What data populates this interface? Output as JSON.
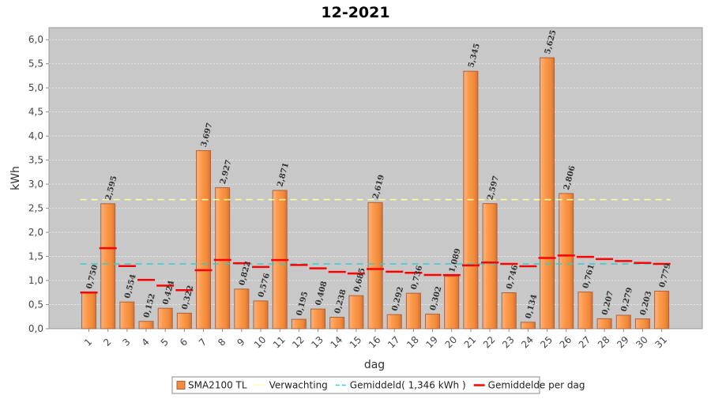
{
  "chart_data": {
    "type": "bar",
    "title": "12-2021",
    "xlabel": "dag",
    "ylabel": "kWh",
    "ylim": [
      0,
      6.25
    ],
    "yticks": [
      "0,0",
      "0,5",
      "1,0",
      "1,5",
      "2,0",
      "2,5",
      "3,0",
      "3,5",
      "4,0",
      "4,5",
      "5,0",
      "5,5",
      "6,0"
    ],
    "ytick_values": [
      0,
      0.5,
      1,
      1.5,
      2,
      2.5,
      3,
      3.5,
      4,
      4.5,
      5,
      5.5,
      6
    ],
    "categories": [
      "1",
      "2",
      "3",
      "4",
      "5",
      "6",
      "7",
      "8",
      "9",
      "10",
      "11",
      "12",
      "13",
      "14",
      "15",
      "16",
      "17",
      "18",
      "19",
      "20",
      "21",
      "22",
      "23",
      "24",
      "25",
      "26",
      "27",
      "28",
      "29",
      "30",
      "31"
    ],
    "series": [
      {
        "name": "SMA2100 TL",
        "values": [
          0.75,
          2.595,
          0.554,
          0.152,
          0.424,
          0.322,
          3.697,
          2.927,
          0.822,
          0.576,
          2.871,
          0.195,
          0.408,
          0.238,
          0.685,
          2.619,
          0.292,
          0.736,
          0.302,
          1.089,
          5.345,
          2.597,
          0.746,
          0.134,
          5.625,
          2.806,
          0.761,
          0.207,
          0.279,
          0.203,
          0.779
        ],
        "labels": [
          "0,750",
          "2,595",
          "0,554",
          "0,152",
          "0,424",
          "0,322",
          "3,697",
          "2,927",
          "0,822",
          "0,576",
          "2,871",
          "0,195",
          "0,408",
          "0,238",
          "0,685",
          "2,619",
          "0,292",
          "0,736",
          "0,302",
          "1,089",
          "5,345",
          "2,597",
          "0,746",
          "0,134",
          "5,625",
          "2,806",
          "0,761",
          "0,207",
          "0,279",
          "0,203",
          "0,779"
        ],
        "color": "#f08a3c"
      },
      {
        "name": "Verwachting",
        "value": 2.68,
        "color": "#ffff99"
      },
      {
        "name": "Gemiddeld( 1,346 kWh )",
        "value": 1.346,
        "color": "#33cccc"
      },
      {
        "name": "Gemiddelde per dag",
        "values": [
          0.75,
          1.672,
          1.3,
          1.013,
          0.895,
          0.8,
          1.214,
          1.428,
          1.36,
          1.282,
          1.426,
          1.323,
          1.252,
          1.18,
          1.147,
          1.239,
          1.183,
          1.16,
          1.115,
          1.114,
          1.315,
          1.373,
          1.346,
          1.295,
          1.468,
          1.519,
          1.491,
          1.445,
          1.405,
          1.365,
          1.346
        ],
        "color": "#ff0000"
      }
    ],
    "grid": true,
    "legend_position": "bottom"
  },
  "colors": {
    "plot_background": "#c8c8c8",
    "grid": "#e6e6e6",
    "bar_fill": "#f08a3c",
    "bar_edge": "#b0603a",
    "bar_highlight": "#ffc48a"
  }
}
